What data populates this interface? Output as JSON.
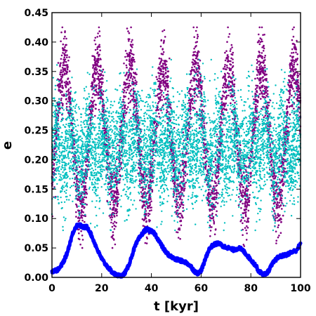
{
  "chart_data": {
    "type": "scatter",
    "title": "",
    "xlabel": "t [kyr]",
    "ylabel": "e",
    "xlim": [
      0,
      100
    ],
    "ylim": [
      0,
      0.45
    ],
    "xticks": [
      "0",
      "20",
      "40",
      "60",
      "80",
      "100"
    ],
    "yticks": [
      "0.00",
      "0.05",
      "0.10",
      "0.15",
      "0.20",
      "0.25",
      "0.30",
      "0.35",
      "0.40",
      "0.45"
    ],
    "grid": false,
    "legend": "none",
    "series": [
      {
        "kind": "scatter",
        "color": "#800080",
        "period_kyr": 13.2,
        "mean": 0.24,
        "envelope_peaks": [
          [
            5,
            0.42
          ],
          [
            11.5,
            0.12
          ],
          [
            18,
            0.41
          ],
          [
            24.5,
            0.13
          ],
          [
            31,
            0.41
          ],
          [
            38,
            0.13
          ],
          [
            44.5,
            0.42
          ],
          [
            51,
            0.12
          ],
          [
            58,
            0.41
          ],
          [
            64.5,
            0.14
          ],
          [
            71,
            0.41
          ],
          [
            77.5,
            0.12
          ],
          [
            84,
            0.42
          ],
          [
            90.5,
            0.1
          ],
          [
            97,
            0.42
          ]
        ]
      },
      {
        "kind": "scatter",
        "color": "#00bfbf",
        "mean": 0.22,
        "range": [
          0.08,
          0.37
        ]
      },
      {
        "kind": "line",
        "color": "#0000ff",
        "x": [
          0,
          1,
          2,
          3,
          4,
          5,
          6,
          7,
          8,
          9,
          10,
          11,
          12,
          13,
          14,
          15,
          16,
          17,
          18,
          19,
          20,
          21,
          22,
          23,
          24,
          25,
          26,
          27,
          28,
          29,
          30,
          31,
          32,
          33,
          34,
          35,
          36,
          37,
          38,
          39,
          40,
          41,
          42,
          43,
          44,
          45,
          46,
          47,
          48,
          49,
          50,
          51,
          52,
          53,
          54,
          55,
          56,
          57,
          58,
          59,
          60,
          61,
          62,
          63,
          64,
          65,
          66,
          67,
          68,
          69,
          70,
          71,
          72,
          73,
          74,
          75,
          76,
          77,
          78,
          79,
          80,
          81,
          82,
          83,
          84,
          85,
          86,
          87,
          88,
          89,
          90,
          91,
          92,
          93,
          94,
          95,
          96,
          97,
          98,
          99,
          100
        ],
        "y": [
          0.01,
          0.012,
          0.012,
          0.015,
          0.022,
          0.03,
          0.04,
          0.055,
          0.07,
          0.082,
          0.088,
          0.09,
          0.086,
          0.085,
          0.086,
          0.08,
          0.07,
          0.06,
          0.05,
          0.04,
          0.032,
          0.025,
          0.02,
          0.015,
          0.01,
          0.006,
          0.004,
          0.003,
          0.002,
          0.006,
          0.012,
          0.022,
          0.035,
          0.048,
          0.058,
          0.066,
          0.072,
          0.078,
          0.082,
          0.08,
          0.078,
          0.076,
          0.07,
          0.062,
          0.055,
          0.048,
          0.042,
          0.038,
          0.035,
          0.032,
          0.03,
          0.03,
          0.028,
          0.027,
          0.025,
          0.022,
          0.018,
          0.012,
          0.008,
          0.007,
          0.012,
          0.022,
          0.035,
          0.046,
          0.052,
          0.055,
          0.057,
          0.058,
          0.055,
          0.052,
          0.052,
          0.05,
          0.048,
          0.047,
          0.048,
          0.05,
          0.048,
          0.045,
          0.04,
          0.035,
          0.03,
          0.025,
          0.02,
          0.012,
          0.008,
          0.005,
          0.006,
          0.01,
          0.018,
          0.025,
          0.03,
          0.034,
          0.036,
          0.037,
          0.038,
          0.04,
          0.042,
          0.044,
          0.045,
          0.05,
          0.058
        ]
      }
    ]
  }
}
